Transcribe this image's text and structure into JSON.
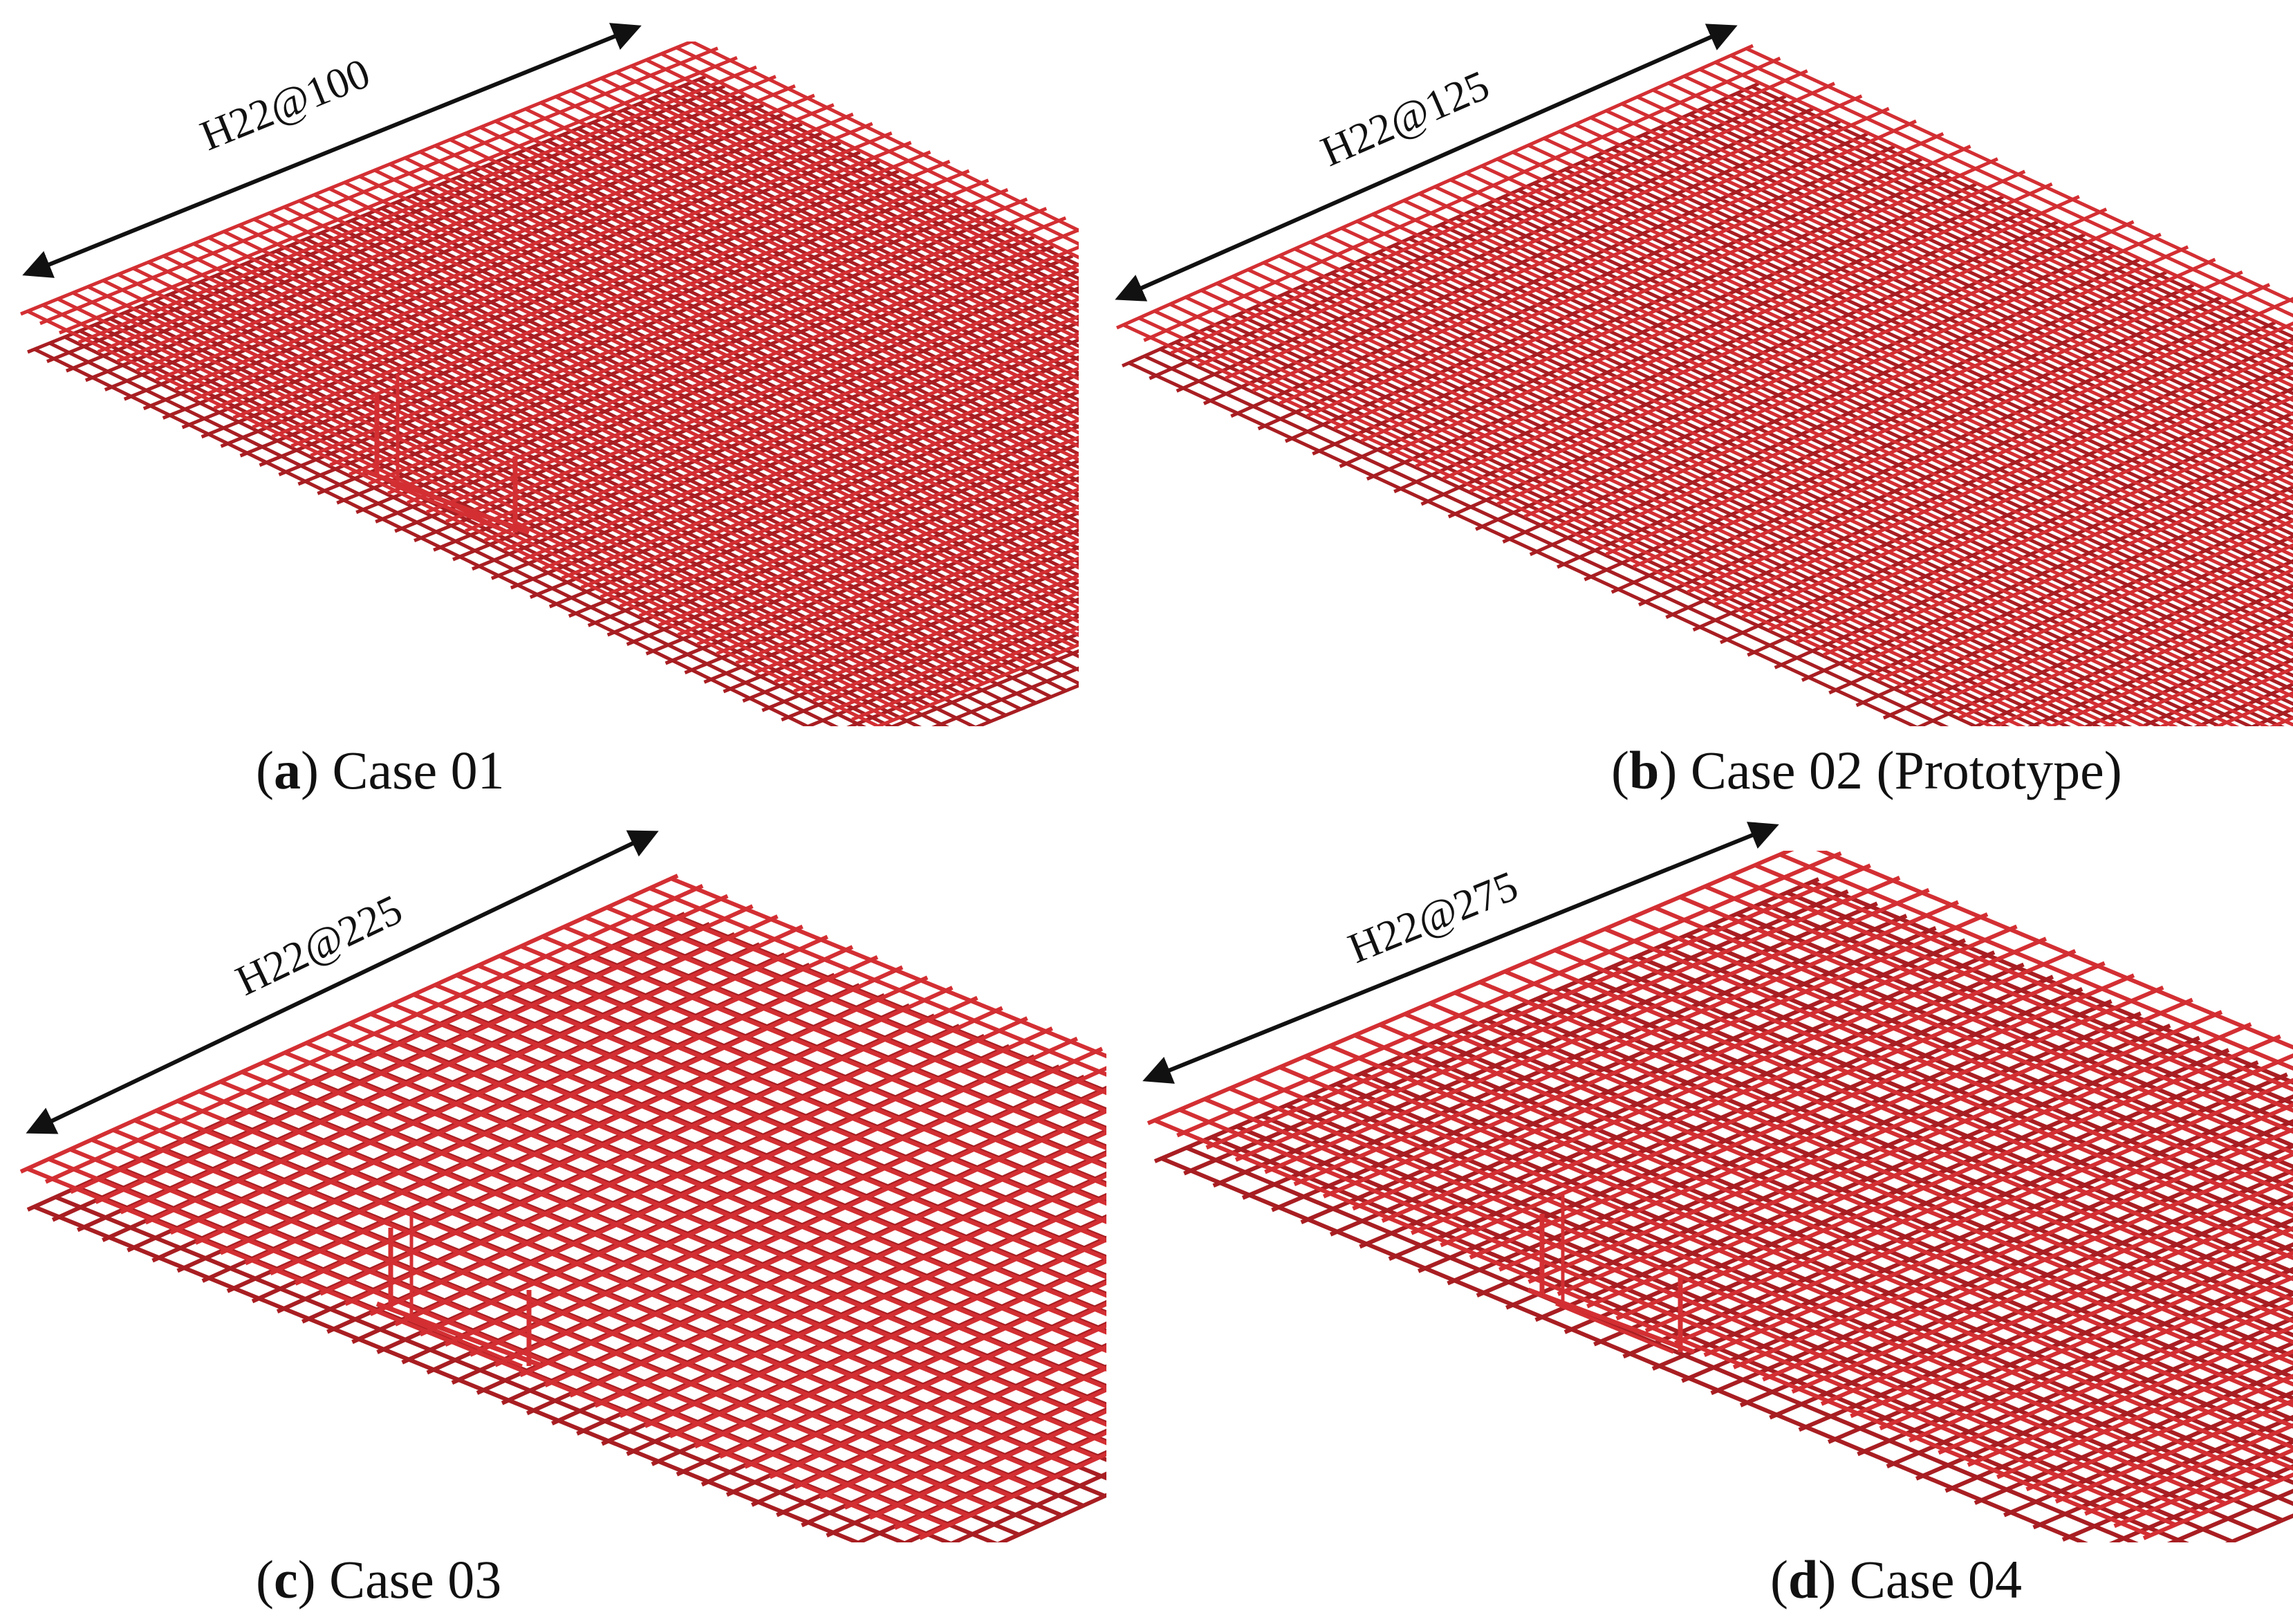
{
  "colors": {
    "rebar": "#d32f33",
    "rebar_dark": "#a81e22",
    "arrow": "#111111",
    "background": "#ffffff"
  },
  "panels": [
    {
      "id": "a",
      "spacing_label": "H22@100",
      "caption_letter": "a",
      "caption_text": "Case 01",
      "has_opening_detail": true
    },
    {
      "id": "b",
      "spacing_label": "H22@125",
      "caption_letter": "b",
      "caption_text": "Case 02 (Prototype)",
      "has_opening_detail": false
    },
    {
      "id": "c",
      "spacing_label": "H22@225",
      "caption_letter": "c",
      "caption_text": "Case 03",
      "has_opening_detail": true
    },
    {
      "id": "d",
      "spacing_label": "H22@275",
      "caption_letter": "d",
      "caption_text": "Case 04",
      "has_opening_detail": true
    }
  ]
}
